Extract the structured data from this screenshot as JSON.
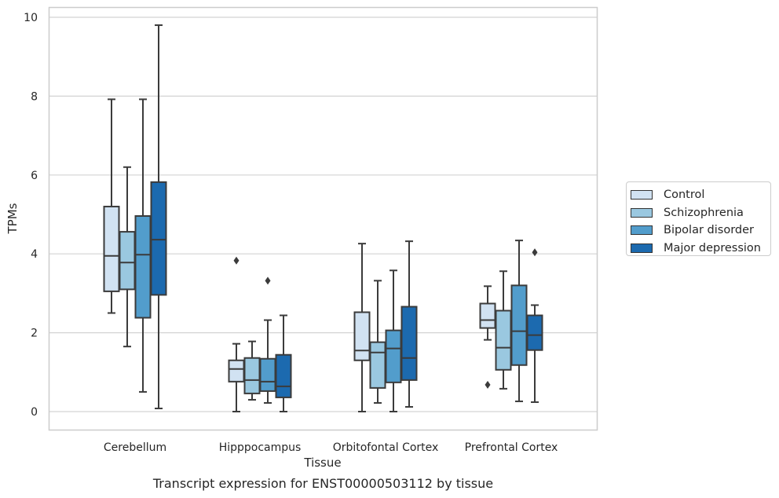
{
  "chart_data": {
    "type": "box",
    "title": "",
    "caption": "Transcript expression for ENST00000503112 by tissue",
    "xlabel": "Tissue",
    "ylabel": "TPMs",
    "ylim": [
      -0.45,
      10.3
    ],
    "yticks": [
      "0",
      "2",
      "4",
      "6",
      "8",
      "10"
    ],
    "categories": [
      "Cerebellum",
      "Hipppocampus",
      "Orbitofontal Cortex",
      "Prefrontal Cortex"
    ],
    "grid": "horizontal",
    "legend_position": "right",
    "series": [
      {
        "name": "Control",
        "color": "#d1e2f2",
        "boxes": [
          {
            "whislo": 2.5,
            "q1": 3.05,
            "med": 3.95,
            "q3": 5.2,
            "whishi": 7.92,
            "fliers": []
          },
          {
            "whislo": 0.0,
            "q1": 0.76,
            "med": 1.08,
            "q3": 1.3,
            "whishi": 1.72,
            "fliers": [
              3.83
            ]
          },
          {
            "whislo": 0.0,
            "q1": 1.3,
            "med": 1.55,
            "q3": 2.52,
            "whishi": 4.26,
            "fliers": []
          },
          {
            "whislo": 1.82,
            "q1": 2.12,
            "med": 2.32,
            "q3": 2.74,
            "whishi": 3.18,
            "fliers": [
              0.68
            ]
          }
        ]
      },
      {
        "name": "Schizophrenia",
        "color": "#9ac8e0",
        "boxes": [
          {
            "whislo": 1.65,
            "q1": 3.1,
            "med": 3.78,
            "q3": 4.56,
            "whishi": 6.2,
            "fliers": []
          },
          {
            "whislo": 0.3,
            "q1": 0.46,
            "med": 0.8,
            "q3": 1.36,
            "whishi": 1.78,
            "fliers": []
          },
          {
            "whislo": 0.22,
            "q1": 0.6,
            "med": 1.5,
            "q3": 1.76,
            "whishi": 3.32,
            "fliers": []
          },
          {
            "whislo": 0.58,
            "q1": 1.06,
            "med": 1.62,
            "q3": 2.56,
            "whishi": 3.56,
            "fliers": []
          }
        ]
      },
      {
        "name": "Bipolar disorder",
        "color": "#529dcc",
        "boxes": [
          {
            "whislo": 0.5,
            "q1": 2.38,
            "med": 3.98,
            "q3": 4.96,
            "whishi": 7.92,
            "fliers": []
          },
          {
            "whislo": 0.22,
            "q1": 0.52,
            "med": 0.76,
            "q3": 1.34,
            "whishi": 2.32,
            "fliers": [
              3.32
            ]
          },
          {
            "whislo": 0.0,
            "q1": 0.74,
            "med": 1.6,
            "q3": 2.06,
            "whishi": 3.58,
            "fliers": []
          },
          {
            "whislo": 0.26,
            "q1": 1.18,
            "med": 2.04,
            "q3": 3.2,
            "whishi": 4.34,
            "fliers": []
          }
        ]
      },
      {
        "name": "Major depression",
        "color": "#1c6aaf",
        "boxes": [
          {
            "whislo": 0.08,
            "q1": 2.96,
            "med": 4.36,
            "q3": 5.82,
            "whishi": 9.8,
            "fliers": []
          },
          {
            "whislo": 0.0,
            "q1": 0.36,
            "med": 0.64,
            "q3": 1.44,
            "whishi": 2.44,
            "fliers": []
          },
          {
            "whislo": 0.12,
            "q1": 0.8,
            "med": 1.36,
            "q3": 2.66,
            "whishi": 4.32,
            "fliers": []
          },
          {
            "whislo": 0.24,
            "q1": 1.56,
            "med": 1.94,
            "q3": 2.44,
            "whishi": 2.7,
            "fliers": [
              4.04
            ]
          }
        ]
      }
    ]
  }
}
